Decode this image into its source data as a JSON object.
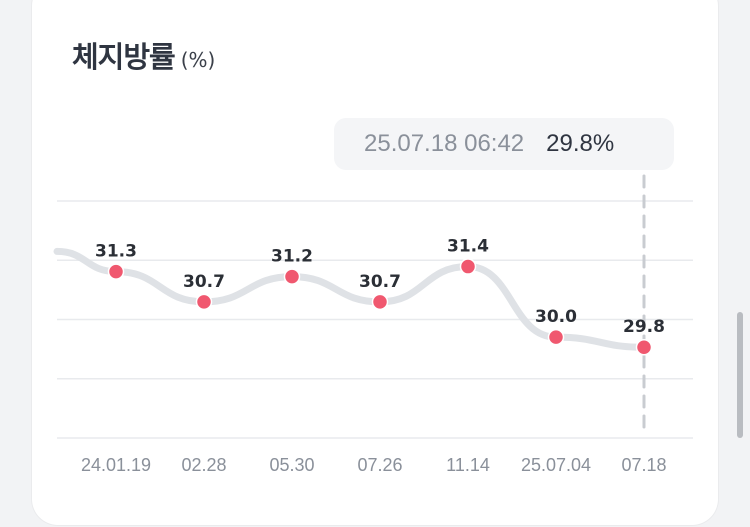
{
  "header": {
    "title": "체지방률",
    "unit": "(%)"
  },
  "tooltip": {
    "time": "25.07.18 06:42",
    "value": "29.8%"
  },
  "colors": {
    "point": "#f0586f",
    "line": "#dfe2e6",
    "grid": "#e8eaed",
    "indicator": "#c9ccd1"
  },
  "chart_data": {
    "type": "line",
    "title": "체지방률",
    "ylabel": "(%)",
    "xlabel": "",
    "categories": [
      "24.01.19",
      "02.28",
      "05.30",
      "07.26",
      "11.14",
      "25.07.04",
      "07.18"
    ],
    "values": [
      31.3,
      30.7,
      31.2,
      30.7,
      31.4,
      30.0,
      29.8
    ],
    "data_labels": [
      "31.3",
      "30.7",
      "31.2",
      "30.7",
      "31.4",
      "30.0",
      "29.8"
    ],
    "leading_value": 31.7,
    "ylim": [
      28.0,
      32.7
    ],
    "grid": true,
    "selected_index": 6
  }
}
